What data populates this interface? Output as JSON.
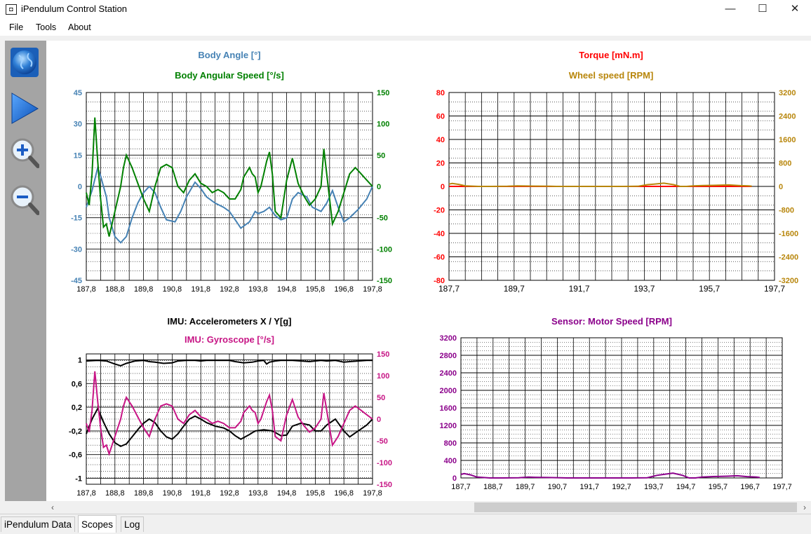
{
  "window": {
    "title": "iPendulum Control Station",
    "minimize_glyph": "—",
    "maximize_glyph": "☐",
    "close_glyph": "✕"
  },
  "menu": [
    "File",
    "Tools",
    "About"
  ],
  "toolbar": {
    "icons": [
      "connect-globe-icon",
      "play-icon",
      "zoom-in-icon",
      "zoom-out-icon"
    ]
  },
  "colors": {
    "body_angle": "#4682b4",
    "body_speed": "#008000",
    "torque": "#ff0000",
    "wheel": "#b8860b",
    "accel": "#000000",
    "gyro": "#c71585",
    "motor": "#8b008b"
  },
  "scopes": {
    "tl": {
      "title1": "Body Angle [°]",
      "title2": "Body Angular Speed [°/s]"
    },
    "tr": {
      "title1": "Torque [mN.m]",
      "title2": "Wheel speed [RPM]"
    },
    "bl": {
      "title1": "IMU: Accelerometers X / Y[g]",
      "title2": "IMU: Gyroscope [°/s]"
    },
    "br": {
      "title1": "Sensor: Motor Speed [RPM]"
    }
  },
  "tabs": [
    "iPendulum Data",
    "Scopes",
    "Log"
  ],
  "active_tab": "Scopes",
  "chart_data": [
    {
      "id": "tl",
      "type": "line",
      "title": "Body Angle [°]",
      "title2": "Body Angular Speed [°/s]",
      "xlim": [
        187.8,
        197.8
      ],
      "xticks": [
        "187,8",
        "188,8",
        "189,8",
        "190,8",
        "191,8",
        "192,8",
        "193,8",
        "194,8",
        "195,8",
        "196,8",
        "197,8"
      ],
      "ylim": [
        -45,
        45
      ],
      "yticks": [
        "45",
        "30",
        "15",
        "0",
        "-15",
        "-30",
        "-45"
      ],
      "y2lim": [
        -150,
        150
      ],
      "y2ticks": [
        "150",
        "100",
        "50",
        "0",
        "-50",
        "-100",
        "-150"
      ],
      "grid": true,
      "series": [
        {
          "name": "Body Angle [°]",
          "axis": "left",
          "color": "#4682b4",
          "x": [
            187.8,
            188.0,
            188.2,
            188.3,
            188.5,
            188.6,
            188.8,
            189.0,
            189.2,
            189.4,
            189.6,
            189.8,
            190.0,
            190.2,
            190.4,
            190.6,
            190.9,
            191.1,
            191.3,
            191.6,
            191.8,
            192.0,
            192.3,
            192.6,
            192.8,
            193.0,
            193.2,
            193.5,
            193.7,
            193.8,
            194.0,
            194.2,
            194.4,
            194.6,
            194.8,
            195.0,
            195.2,
            195.5,
            195.7,
            196.0,
            196.2,
            196.4,
            196.6,
            196.8,
            197.0,
            197.3,
            197.6,
            197.8
          ],
          "y": [
            -10,
            -2,
            9,
            5,
            -5,
            -15,
            -24,
            -27,
            -24,
            -15,
            -8,
            -3,
            0,
            -3,
            -10,
            -16,
            -17,
            -12,
            -5,
            2,
            -1,
            -5,
            -8,
            -10,
            -12,
            -16,
            -20,
            -17,
            -12,
            -13,
            -12,
            -10,
            -14,
            -16,
            -15,
            -6,
            -3,
            -5,
            -10,
            -12,
            -8,
            -2,
            -10,
            -17,
            -15,
            -11,
            -6,
            0
          ]
        },
        {
          "name": "Body Angular Speed [°/s]",
          "axis": "right",
          "color": "#008000",
          "x": [
            187.8,
            187.9,
            188.0,
            188.1,
            188.2,
            188.3,
            188.4,
            188.5,
            188.6,
            188.7,
            188.8,
            189.0,
            189.1,
            189.2,
            189.4,
            189.6,
            189.8,
            190.0,
            190.2,
            190.4,
            190.6,
            190.8,
            191.0,
            191.2,
            191.4,
            191.6,
            191.8,
            192.0,
            192.2,
            192.4,
            192.6,
            192.8,
            193.0,
            193.2,
            193.3,
            193.5,
            193.6,
            193.7,
            193.8,
            193.9,
            194.0,
            194.1,
            194.2,
            194.3,
            194.4,
            194.6,
            194.8,
            195.0,
            195.2,
            195.4,
            195.6,
            195.8,
            196.0,
            196.1,
            196.2,
            196.4,
            196.6,
            196.8,
            197.0,
            197.2,
            197.4,
            197.6,
            197.8
          ],
          "y": [
            -10,
            -30,
            20,
            110,
            40,
            -20,
            -65,
            -60,
            -80,
            -60,
            -40,
            0,
            30,
            50,
            30,
            5,
            -20,
            -40,
            0,
            30,
            35,
            30,
            0,
            -10,
            10,
            20,
            5,
            0,
            -10,
            -5,
            -10,
            -20,
            -20,
            -5,
            15,
            30,
            20,
            15,
            -10,
            0,
            20,
            40,
            55,
            20,
            -40,
            -50,
            10,
            45,
            5,
            -15,
            -30,
            -20,
            0,
            60,
            20,
            -60,
            -40,
            -10,
            20,
            30,
            20,
            10,
            0
          ]
        }
      ]
    },
    {
      "id": "tr",
      "type": "line",
      "title": "Torque [mN.m]",
      "title2": "Wheel speed [RPM]",
      "xlim": [
        187.7,
        197.7
      ],
      "xticks": [
        "187,7",
        "189,7",
        "191,7",
        "193,7",
        "195,7",
        "197,7"
      ],
      "ylim": [
        -80,
        80
      ],
      "yticks": [
        "80",
        "60",
        "40",
        "20",
        "0",
        "-20",
        "-40",
        "-60",
        "-80"
      ],
      "y2lim": [
        -3200,
        3200
      ],
      "y2ticks": [
        "3200",
        "2400",
        "1600",
        "800",
        "0",
        "-800",
        "-1600",
        "-2400",
        "-3200"
      ],
      "grid": true,
      "series": [
        {
          "name": "Torque [mN.m]",
          "axis": "left",
          "color": "#ff0000",
          "x": [
            187.7,
            197.0
          ],
          "y": [
            0,
            0
          ]
        },
        {
          "name": "Wheel speed [RPM]",
          "axis": "right",
          "color": "#b8860b",
          "x": [
            187.7,
            187.8,
            188.0,
            188.2,
            188.4,
            188.6,
            189.0,
            189.5,
            189.8,
            190.0,
            190.4,
            190.8,
            191.0,
            191.5,
            192.0,
            192.5,
            193.0,
            193.5,
            193.8,
            194.0,
            194.3,
            194.6,
            194.8,
            195.0,
            195.2,
            195.5,
            195.8,
            196.0,
            196.3,
            196.6,
            196.9,
            197.0
          ],
          "y": [
            80,
            100,
            70,
            20,
            10,
            0,
            0,
            5,
            20,
            15,
            10,
            5,
            0,
            0,
            0,
            0,
            0,
            5,
            60,
            80,
            110,
            60,
            0,
            0,
            20,
            30,
            35,
            40,
            50,
            30,
            20,
            10
          ]
        }
      ]
    },
    {
      "id": "bl",
      "type": "line",
      "title": "IMU: Accelerometers X / Y[g]",
      "title2": "IMU: Gyroscope [°/s]",
      "xlim": [
        187.8,
        197.8
      ],
      "xticks": [
        "187,8",
        "188,8",
        "189,8",
        "190,8",
        "191,8",
        "192,8",
        "193,8",
        "194,8",
        "195,8",
        "196,8",
        "197,8"
      ],
      "ylim": [
        -1.1,
        1.1
      ],
      "yticks": [
        "1",
        "0,6",
        "0,2",
        "-0,2",
        "-0,6",
        "-1"
      ],
      "y2lim": [
        -150,
        150
      ],
      "y2ticks": [
        "150",
        "100",
        "50",
        "0",
        "-50",
        "-100",
        "-150"
      ],
      "grid": true,
      "series": [
        {
          "name": "Accelerometer X",
          "axis": "left",
          "color": "#000000",
          "x": [
            187.8,
            188.2,
            188.5,
            188.8,
            189.0,
            189.2,
            189.5,
            189.8,
            190.0,
            190.2,
            190.5,
            190.8,
            191.0,
            191.3,
            191.6,
            191.8,
            192.0,
            192.4,
            192.8,
            193.0,
            193.3,
            193.6,
            193.8,
            194.0,
            194.1,
            194.2,
            194.4,
            194.6,
            194.8,
            195.0,
            195.3,
            195.6,
            195.8,
            196.0,
            196.2,
            196.5,
            196.8,
            197.0,
            197.3,
            197.6,
            197.8
          ],
          "y": [
            0.98,
            0.99,
            0.98,
            0.93,
            0.9,
            0.94,
            0.98,
            0.99,
            0.97,
            0.96,
            0.94,
            0.95,
            0.98,
            0.99,
            0.99,
            0.98,
            0.99,
            0.99,
            0.99,
            0.97,
            0.95,
            0.96,
            0.98,
            0.99,
            0.93,
            0.96,
            0.98,
            0.99,
            0.99,
            0.99,
            0.98,
            0.97,
            0.98,
            0.99,
            0.98,
            0.99,
            0.96,
            0.97,
            0.98,
            0.99,
            0.99
          ]
        },
        {
          "name": "Accelerometer Y",
          "axis": "left",
          "color": "#000000",
          "x": [
            187.8,
            188.0,
            188.2,
            188.4,
            188.6,
            188.8,
            189.0,
            189.2,
            189.4,
            189.6,
            189.8,
            190.0,
            190.2,
            190.4,
            190.6,
            190.8,
            191.0,
            191.2,
            191.4,
            191.6,
            191.8,
            192.0,
            192.3,
            192.6,
            192.8,
            193.0,
            193.2,
            193.5,
            193.7,
            194.0,
            194.3,
            194.6,
            194.8,
            195.0,
            195.3,
            195.6,
            195.8,
            196.0,
            196.2,
            196.5,
            196.8,
            197.0,
            197.3,
            197.6,
            197.8
          ],
          "y": [
            -0.25,
            0.0,
            0.18,
            -0.05,
            -0.25,
            -0.4,
            -0.46,
            -0.42,
            -0.3,
            -0.18,
            -0.07,
            0.0,
            -0.06,
            -0.2,
            -0.3,
            -0.34,
            -0.25,
            -0.12,
            0.0,
            0.05,
            0.0,
            -0.06,
            -0.12,
            -0.15,
            -0.2,
            -0.28,
            -0.34,
            -0.26,
            -0.2,
            -0.18,
            -0.2,
            -0.28,
            -0.27,
            -0.12,
            -0.07,
            -0.1,
            -0.2,
            -0.2,
            -0.1,
            0.0,
            -0.2,
            -0.3,
            -0.2,
            -0.1,
            0.0
          ]
        },
        {
          "name": "Gyroscope",
          "axis": "right",
          "color": "#c71585",
          "x": [
            187.8,
            187.9,
            188.0,
            188.1,
            188.2,
            188.3,
            188.4,
            188.5,
            188.6,
            188.7,
            188.8,
            189.0,
            189.1,
            189.2,
            189.4,
            189.6,
            189.8,
            190.0,
            190.2,
            190.4,
            190.6,
            190.8,
            191.0,
            191.2,
            191.4,
            191.6,
            191.8,
            192.0,
            192.2,
            192.4,
            192.6,
            192.8,
            193.0,
            193.2,
            193.3,
            193.5,
            193.6,
            193.7,
            193.8,
            193.9,
            194.0,
            194.1,
            194.2,
            194.3,
            194.4,
            194.6,
            194.8,
            195.0,
            195.2,
            195.4,
            195.6,
            195.8,
            196.0,
            196.1,
            196.2,
            196.4,
            196.6,
            196.8,
            197.0,
            197.2,
            197.4,
            197.6,
            197.8
          ],
          "y": [
            -10,
            -30,
            20,
            110,
            40,
            -20,
            -65,
            -60,
            -80,
            -60,
            -40,
            0,
            30,
            50,
            30,
            5,
            -20,
            -40,
            0,
            30,
            35,
            30,
            0,
            -10,
            10,
            20,
            5,
            0,
            -10,
            -5,
            -10,
            -20,
            -20,
            -5,
            15,
            30,
            20,
            15,
            -10,
            0,
            20,
            40,
            55,
            20,
            -40,
            -50,
            10,
            45,
            5,
            -15,
            -30,
            -20,
            0,
            60,
            20,
            -60,
            -40,
            -10,
            20,
            30,
            20,
            10,
            0
          ]
        }
      ]
    },
    {
      "id": "br",
      "type": "line",
      "title": "Sensor: Motor Speed [RPM]",
      "xlim": [
        187.7,
        197.7
      ],
      "xticks": [
        "187,7",
        "188,7",
        "189,7",
        "190,7",
        "191,7",
        "192,7",
        "193,7",
        "194,7",
        "195,7",
        "196,7",
        "197,7"
      ],
      "ylim": [
        0,
        3200
      ],
      "yticks": [
        "3200",
        "2800",
        "2400",
        "2000",
        "1600",
        "1200",
        "800",
        "400",
        "0"
      ],
      "grid": true,
      "series": [
        {
          "name": "Sensor: Motor Speed [RPM]",
          "axis": "left",
          "color": "#8b008b",
          "x": [
            187.7,
            187.8,
            188.0,
            188.2,
            188.4,
            188.6,
            189.0,
            189.5,
            189.8,
            190.0,
            190.4,
            190.8,
            191.0,
            191.5,
            192.0,
            192.5,
            193.0,
            193.5,
            193.8,
            194.0,
            194.3,
            194.6,
            194.8,
            195.0,
            195.2,
            195.5,
            195.8,
            196.0,
            196.3,
            196.6,
            196.9,
            197.0
          ],
          "y": [
            80,
            100,
            70,
            20,
            10,
            0,
            0,
            5,
            20,
            15,
            10,
            5,
            0,
            0,
            0,
            0,
            0,
            5,
            60,
            80,
            110,
            60,
            0,
            0,
            20,
            30,
            35,
            40,
            50,
            30,
            20,
            10
          ]
        }
      ]
    }
  ]
}
